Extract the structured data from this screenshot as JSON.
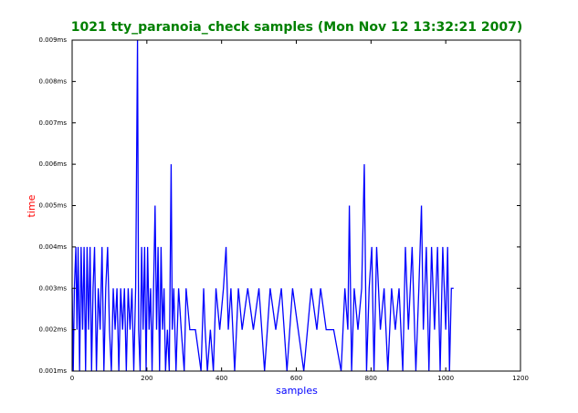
{
  "chart_data": {
    "type": "line",
    "title": "1021 tty_paranoia_check samples (Mon Nov 12 13:32:21 2007)",
    "x_label": "samples",
    "y_label": "time",
    "x": [
      0,
      3,
      6,
      10,
      13,
      16,
      20,
      24,
      28,
      32,
      36,
      40,
      44,
      48,
      52,
      56,
      60,
      65,
      70,
      75,
      80,
      85,
      90,
      95,
      100,
      105,
      110,
      115,
      120,
      125,
      130,
      135,
      140,
      145,
      150,
      155,
      160,
      165,
      170,
      175,
      178,
      182,
      186,
      190,
      194,
      198,
      202,
      206,
      210,
      214,
      218,
      222,
      226,
      230,
      234,
      238,
      242,
      246,
      250,
      255,
      260,
      265,
      268,
      272,
      278,
      285,
      292,
      300,
      305,
      315,
      330,
      345,
      352,
      356,
      362,
      370,
      378,
      385,
      395,
      405,
      412,
      418,
      425,
      435,
      445,
      455,
      470,
      485,
      500,
      515,
      530,
      545,
      560,
      575,
      590,
      605,
      620,
      640,
      655,
      665,
      680,
      700,
      720,
      730,
      738,
      742,
      748,
      755,
      765,
      775,
      782,
      788,
      795,
      802,
      808,
      815,
      825,
      835,
      845,
      855,
      865,
      875,
      885,
      892,
      900,
      910,
      920,
      928,
      935,
      940,
      948,
      955,
      962,
      970,
      978,
      985,
      992,
      1000,
      1005,
      1010,
      1015,
      1021
    ],
    "series": [
      {
        "color": "#0000ff",
        "values": [
          0.003,
          0.001,
          0.003,
          0.004,
          0.002,
          0.004,
          0.001,
          0.004,
          0.002,
          0.004,
          0.001,
          0.004,
          0.002,
          0.004,
          0.001,
          0.003,
          0.004,
          0.001,
          0.003,
          0.002,
          0.004,
          0.001,
          0.003,
          0.004,
          0.002,
          0.001,
          0.003,
          0.002,
          0.003,
          0.001,
          0.003,
          0.002,
          0.003,
          0.001,
          0.003,
          0.002,
          0.003,
          0.001,
          0.003,
          0.009,
          0.002,
          0.001,
          0.004,
          0.002,
          0.004,
          0.001,
          0.004,
          0.002,
          0.003,
          0.001,
          0.003,
          0.005,
          0.002,
          0.004,
          0.001,
          0.004,
          0.002,
          0.003,
          0.001,
          0.002,
          0.001,
          0.006,
          0.002,
          0.003,
          0.001,
          0.003,
          0.002,
          0.001,
          0.003,
          0.002,
          0.002,
          0.001,
          0.003,
          0.002,
          0.001,
          0.002,
          0.001,
          0.003,
          0.002,
          0.003,
          0.004,
          0.002,
          0.003,
          0.001,
          0.003,
          0.002,
          0.003,
          0.002,
          0.003,
          0.001,
          0.003,
          0.002,
          0.003,
          0.001,
          0.003,
          0.002,
          0.001,
          0.003,
          0.002,
          0.003,
          0.002,
          0.002,
          0.001,
          0.003,
          0.002,
          0.005,
          0.001,
          0.003,
          0.002,
          0.003,
          0.006,
          0.001,
          0.003,
          0.004,
          0.001,
          0.004,
          0.002,
          0.003,
          0.001,
          0.003,
          0.002,
          0.003,
          0.001,
          0.004,
          0.002,
          0.004,
          0.001,
          0.003,
          0.005,
          0.002,
          0.004,
          0.001,
          0.004,
          0.002,
          0.004,
          0.001,
          0.004,
          0.002,
          0.004,
          0.001,
          0.003,
          0.003
        ]
      }
    ],
    "xlim": [
      0,
      1200
    ],
    "xticks": [
      0,
      200,
      400,
      600,
      800,
      1000,
      1200
    ],
    "ylim": [
      0.001,
      0.009
    ],
    "yticks": [
      {
        "value": 0.001,
        "label": "0.001ms"
      },
      {
        "value": 0.002,
        "label": "0.002ms"
      },
      {
        "value": 0.003,
        "label": "0.003ms"
      },
      {
        "value": 0.004,
        "label": "0.004ms"
      },
      {
        "value": 0.005,
        "label": "0.005ms"
      },
      {
        "value": 0.006,
        "label": "0.006ms"
      },
      {
        "value": 0.007,
        "label": "0.007ms"
      },
      {
        "value": 0.008,
        "label": "0.008ms"
      },
      {
        "value": 0.009,
        "label": "0.009ms"
      }
    ]
  }
}
